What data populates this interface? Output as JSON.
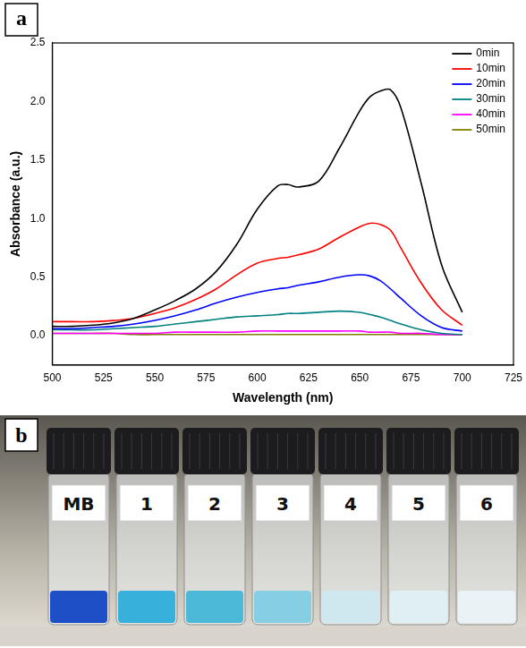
{
  "chart_data": {
    "type": "line",
    "x_label": "Wavelength (nm)",
    "y_label": "Absorbance (a.u.)",
    "annotations": [
      "a"
    ],
    "x": [
      500,
      510,
      520,
      530,
      540,
      550,
      560,
      570,
      580,
      590,
      600,
      610,
      615,
      620,
      630,
      640,
      650,
      655,
      660,
      665,
      670,
      680,
      690,
      700
    ],
    "series": [
      {
        "name": "0min",
        "color": "#000000",
        "values": [
          0.08,
          0.08,
          0.09,
          0.11,
          0.15,
          0.22,
          0.3,
          0.4,
          0.55,
          0.78,
          1.08,
          1.28,
          1.29,
          1.27,
          1.32,
          1.6,
          1.92,
          2.04,
          2.09,
          2.1,
          1.95,
          1.3,
          0.6,
          0.2
        ]
      },
      {
        "name": "10min",
        "color": "#ff0000",
        "values": [
          0.12,
          0.12,
          0.12,
          0.13,
          0.15,
          0.19,
          0.24,
          0.31,
          0.4,
          0.52,
          0.62,
          0.66,
          0.67,
          0.69,
          0.74,
          0.84,
          0.93,
          0.96,
          0.95,
          0.9,
          0.75,
          0.45,
          0.22,
          0.09
        ]
      },
      {
        "name": "20min",
        "color": "#0000ff",
        "values": [
          0.06,
          0.06,
          0.07,
          0.08,
          0.1,
          0.13,
          0.17,
          0.22,
          0.28,
          0.33,
          0.37,
          0.4,
          0.41,
          0.43,
          0.46,
          0.5,
          0.52,
          0.51,
          0.47,
          0.4,
          0.32,
          0.17,
          0.07,
          0.04
        ]
      },
      {
        "name": "30min",
        "color": "#008080",
        "values": [
          0.05,
          0.05,
          0.05,
          0.06,
          0.07,
          0.08,
          0.1,
          0.12,
          0.14,
          0.16,
          0.17,
          0.18,
          0.19,
          0.19,
          0.2,
          0.21,
          0.2,
          0.18,
          0.16,
          0.13,
          0.1,
          0.05,
          0.02,
          0.01
        ]
      },
      {
        "name": "40min",
        "color": "#ff00ff",
        "values": [
          0.02,
          0.02,
          0.02,
          0.02,
          0.02,
          0.02,
          0.03,
          0.03,
          0.03,
          0.03,
          0.04,
          0.04,
          0.04,
          0.04,
          0.04,
          0.04,
          0.04,
          0.03,
          0.03,
          0.03,
          0.02,
          0.02,
          0.01,
          0.01
        ]
      },
      {
        "name": "50min",
        "color": "#808000",
        "values": [
          0.02,
          0.02,
          0.02,
          0.02,
          0.01,
          0.01,
          0.01,
          0.01,
          0.01,
          0.01,
          0.01,
          0.01,
          0.01,
          0.01,
          0.01,
          0.01,
          0.01,
          0.01,
          0.01,
          0.01,
          0.01,
          0.01,
          0.01,
          0.01
        ]
      }
    ],
    "xlim": [
      500,
      725
    ],
    "xticks": [
      500,
      525,
      550,
      575,
      600,
      625,
      650,
      675,
      700,
      725
    ],
    "ylim": [
      -0.25,
      2.5
    ],
    "yticks": [
      {
        "value": 0,
        "label": "0.0"
      },
      {
        "value": 0.5,
        "label": "0.5"
      },
      {
        "value": 1,
        "label": "1.0"
      },
      {
        "value": 1.5,
        "label": "1.5"
      },
      {
        "value": 2,
        "label": "2.0"
      },
      {
        "value": 2.5,
        "label": "2.5"
      }
    ],
    "grid": false,
    "legend": "upper right"
  },
  "photo": {
    "label": "b",
    "vials": [
      "MB",
      "1",
      "2",
      "3",
      "4",
      "5",
      "6"
    ]
  }
}
